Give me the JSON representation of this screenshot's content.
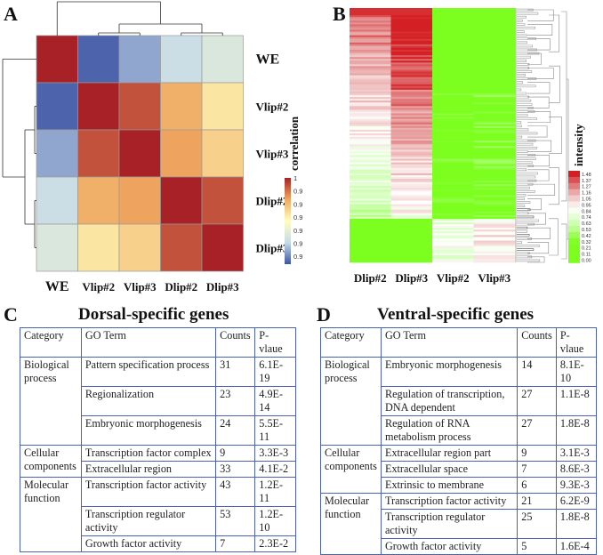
{
  "panels": {
    "A": "A",
    "B": "B",
    "C": "C",
    "D": "D"
  },
  "chart_data": [
    {
      "type": "heatmap",
      "title": "",
      "rows": [
        "WE",
        "Vlip#2",
        "Vlip#3",
        "Dlip#2",
        "Dlip#3"
      ],
      "columns": [
        "WE",
        "Vlip#2",
        "Vlip#3",
        "Dlip#2",
        "Dlip#3"
      ],
      "values": [
        [
          1.0,
          0.968,
          0.972,
          0.976,
          0.978
        ],
        [
          0.968,
          1.0,
          0.997,
          0.991,
          0.986
        ],
        [
          0.972,
          0.997,
          1.0,
          0.992,
          0.988
        ],
        [
          0.976,
          0.991,
          0.992,
          1.0,
          0.997
        ],
        [
          0.978,
          0.986,
          0.988,
          0.997,
          1.0
        ]
      ],
      "colorbar": {
        "label": "correlation",
        "ticks": [
          "1",
          "0.995",
          "0.99",
          "0.985",
          "0.98",
          "0.975",
          "0.97"
        ],
        "range": [
          0.967,
          1.0
        ],
        "colors": [
          "#3c54a4",
          "#c6dbea",
          "#ffffbf",
          "#f0a860",
          "#a72126"
        ]
      },
      "dendrogram": "rows-and-columns"
    },
    {
      "type": "heatmap",
      "title": "",
      "columns": [
        "Dlip#2",
        "Dlip#3",
        "Vlip#2",
        "Vlip#3"
      ],
      "row_clusters": [
        {
          "name": "dorsal-specific",
          "fraction_of_rows": 0.83,
          "mean_values": [
            0.9,
            1.15,
            0.05,
            0.1
          ]
        },
        {
          "name": "ventral-specific",
          "fraction_of_rows": 0.17,
          "mean_values": [
            0.1,
            0.1,
            0.8,
            0.95
          ]
        }
      ],
      "colorbar": {
        "label": "intensity",
        "ticks": [
          "1.48",
          "1.37",
          "1.27",
          "1.16",
          "1.05",
          "0.95",
          "0.84",
          "0.74",
          "0.63",
          "0.53",
          "0.42",
          "0.32",
          "0.21",
          "0.11",
          "0.00"
        ],
        "range": [
          0.0,
          1.48
        ],
        "low_color": "#7cff1e",
        "mid_color": "#ffffff",
        "high_color": "#d42024"
      },
      "dendrogram": "rows"
    }
  ],
  "tables": [
    {
      "title": "Dorsal-specific genes",
      "headers": [
        "Category",
        "GO Term",
        "Counts",
        "P-vlaue"
      ],
      "groups": [
        {
          "category": "Biological process",
          "rows": [
            {
              "term": "Pattern specification process",
              "counts": "31",
              "p": "6.1E-19"
            },
            {
              "term": "Regionalization",
              "counts": "23",
              "p": "4.9E-14"
            },
            {
              "term": "Embryonic morphogenesis",
              "counts": "24",
              "p": "5.5E-11"
            }
          ]
        },
        {
          "category": "Cellular components",
          "rows": [
            {
              "term": "Transcription factor complex",
              "counts": "9",
              "p": "3.3E-3"
            },
            {
              "term": "Extracellular region",
              "counts": "33",
              "p": "4.1E-2"
            }
          ]
        },
        {
          "category": "Molecular function",
          "rows": [
            {
              "term": "Transcription factor activity",
              "counts": "43",
              "p": "1.2E-11"
            },
            {
              "term": "Transcription regulator activity",
              "counts": "53",
              "p": "1.2E-10"
            },
            {
              "term": "Growth factor activity",
              "counts": "7",
              "p": "2.3E-2"
            }
          ]
        }
      ]
    },
    {
      "title": "Ventral-specific genes",
      "headers": [
        "Category",
        "GO Term",
        "Counts",
        "P-vlaue"
      ],
      "groups": [
        {
          "category": "Biological process",
          "rows": [
            {
              "term": "Embryonic morphogenesis",
              "counts": "14",
              "p": "8.1E-10"
            },
            {
              "term": "Regulation of transcription, DNA dependent",
              "counts": "27",
              "p": "1.1E-8"
            },
            {
              "term": "Regulation of RNA metabolism process",
              "counts": "27",
              "p": "1.8E-8"
            }
          ]
        },
        {
          "category": "Cellular components",
          "rows": [
            {
              "term": "Extracellular region part",
              "counts": "9",
              "p": "3.1E-3"
            },
            {
              "term": "Extracellular space",
              "counts": "7",
              "p": "8.6E-3"
            },
            {
              "term": "Extrinsic to membrane",
              "counts": "6",
              "p": "9.3E-3"
            }
          ]
        },
        {
          "category": "Molecular function",
          "rows": [
            {
              "term": "Transcription factor activity",
              "counts": "21",
              "p": "6.2E-9"
            },
            {
              "term": "Transcription regulator activity",
              "counts": "25",
              "p": "1.8E-8"
            },
            {
              "term": "Growth factor activity",
              "counts": "5",
              "p": "1.6E-4"
            }
          ]
        }
      ]
    }
  ]
}
